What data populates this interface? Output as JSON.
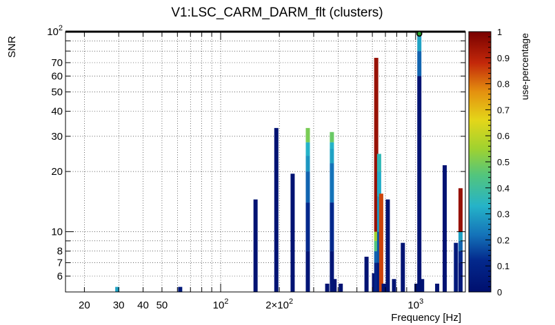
{
  "chart_data": {
    "type": "bar",
    "title": "V1:LSC_CARM_DARM_flt (clusters)",
    "xlabel": "Frequency [Hz]",
    "ylabel": "SNR",
    "colorbar_label": "use-percentage",
    "x_scale": "log",
    "y_scale": "log",
    "xlim": [
      16,
      1800
    ],
    "ylim": [
      5,
      100
    ],
    "colorbar_range": [
      0,
      1
    ],
    "grid": true,
    "x_ticks": [
      {
        "value": 20,
        "label": "20"
      },
      {
        "value": 30,
        "label": "30"
      },
      {
        "value": 40,
        "label": "40"
      },
      {
        "value": 50,
        "label": "50"
      },
      {
        "value": 100,
        "label": "10^2"
      },
      {
        "value": 200,
        "label": "2×10^2"
      },
      {
        "value": 1000,
        "label": "10^3"
      }
    ],
    "y_ticks": [
      {
        "value": 6,
        "label": "6"
      },
      {
        "value": 7,
        "label": "7"
      },
      {
        "value": 8,
        "label": "8"
      },
      {
        "value": 10,
        "label": "10"
      },
      {
        "value": 20,
        "label": "20"
      },
      {
        "value": 30,
        "label": "30"
      },
      {
        "value": 40,
        "label": "40"
      },
      {
        "value": 50,
        "label": "50"
      },
      {
        "value": 60,
        "label": "60"
      },
      {
        "value": 70,
        "label": "70"
      },
      {
        "value": 100,
        "label": "10^2"
      }
    ],
    "colorbar_ticks": [
      "0",
      "0.1",
      "0.2",
      "0.3",
      "0.4",
      "0.5",
      "0.6",
      "0.7",
      "0.8",
      "0.9",
      "1"
    ],
    "bars": [
      {
        "freq": 29.5,
        "snr": 5.3,
        "segments": [
          {
            "upto": 5.3,
            "use": 0.3
          }
        ]
      },
      {
        "freq": 62,
        "snr": 5.3,
        "segments": [
          {
            "upto": 5.3,
            "use": 0.05
          }
        ]
      },
      {
        "freq": 151,
        "snr": 14.5,
        "segments": [
          {
            "upto": 14.5,
            "use": 0.02
          }
        ]
      },
      {
        "freq": 193,
        "snr": 33,
        "segments": [
          {
            "upto": 33,
            "use": 0.02
          }
        ]
      },
      {
        "freq": 234,
        "snr": 19.5,
        "segments": [
          {
            "upto": 19.5,
            "use": 0.02
          }
        ]
      },
      {
        "freq": 280,
        "snr": 33,
        "segments": [
          {
            "upto": 8,
            "use": 0.03
          },
          {
            "upto": 14,
            "use": 0.12
          },
          {
            "upto": 20,
            "use": 0.2
          },
          {
            "upto": 24,
            "use": 0.28
          },
          {
            "upto": 28,
            "use": 0.33
          },
          {
            "upto": 33,
            "use": 0.5
          }
        ]
      },
      {
        "freq": 352,
        "snr": 5.5,
        "segments": [
          {
            "upto": 5.5,
            "use": 0.02
          }
        ]
      },
      {
        "freq": 372,
        "snr": 31.5,
        "segments": [
          {
            "upto": 8,
            "use": 0.03
          },
          {
            "upto": 14,
            "use": 0.12
          },
          {
            "upto": 22,
            "use": 0.22
          },
          {
            "upto": 26,
            "use": 0.3
          },
          {
            "upto": 28,
            "use": 0.33
          },
          {
            "upto": 31.5,
            "use": 0.48
          }
        ]
      },
      {
        "freq": 384,
        "snr": 5.8,
        "segments": [
          {
            "upto": 5.8,
            "use": 0.02
          }
        ]
      },
      {
        "freq": 413,
        "snr": 5.5,
        "segments": [
          {
            "upto": 5.5,
            "use": 0.02
          }
        ]
      },
      {
        "freq": 560,
        "snr": 7.5,
        "segments": [
          {
            "upto": 7.5,
            "use": 0.02
          }
        ]
      },
      {
        "freq": 612,
        "snr": 6.2,
        "segments": [
          {
            "upto": 6.2,
            "use": 0.02
          }
        ]
      },
      {
        "freq": 628,
        "snr": 74,
        "segments": [
          {
            "upto": 7,
            "use": 0.1
          },
          {
            "upto": 8,
            "use": 0.2
          },
          {
            "upto": 9,
            "use": 0.45
          },
          {
            "upto": 10,
            "use": 0.55
          },
          {
            "upto": 74,
            "use": 0.95
          }
        ]
      },
      {
        "freq": 650,
        "snr": 24.5,
        "segments": [
          {
            "upto": 7,
            "use": 0.05
          },
          {
            "upto": 10,
            "use": 0.18
          },
          {
            "upto": 15,
            "use": 0.28
          },
          {
            "upto": 20,
            "use": 0.32
          },
          {
            "upto": 24.5,
            "use": 0.36
          }
        ]
      },
      {
        "freq": 666,
        "snr": 15.5,
        "segments": [
          {
            "upto": 15.5,
            "use": 0.85
          }
        ]
      },
      {
        "freq": 686,
        "snr": 5.5,
        "segments": [
          {
            "upto": 5.5,
            "use": 0.02
          }
        ]
      },
      {
        "freq": 720,
        "snr": 14.5,
        "segments": [
          {
            "upto": 14.5,
            "use": 0.02
          }
        ]
      },
      {
        "freq": 775,
        "snr": 5.8,
        "segments": [
          {
            "upto": 5.8,
            "use": 0.02
          }
        ]
      },
      {
        "freq": 860,
        "snr": 8.8,
        "segments": [
          {
            "upto": 8.8,
            "use": 0.02
          }
        ]
      },
      {
        "freq": 1010,
        "snr": 5.5,
        "segments": [
          {
            "upto": 5.5,
            "use": 0.02
          }
        ]
      },
      {
        "freq": 1045,
        "snr": 98,
        "segments": [
          {
            "upto": 60,
            "use": 0.02
          },
          {
            "upto": 80,
            "use": 0.2
          },
          {
            "upto": 98,
            "use": 0.3
          }
        ]
      },
      {
        "freq": 1080,
        "snr": 5.8,
        "segments": [
          {
            "upto": 5.8,
            "use": 0.02
          }
        ]
      },
      {
        "freq": 1290,
        "snr": 5.5,
        "segments": [
          {
            "upto": 5.5,
            "use": 0.02
          }
        ]
      },
      {
        "freq": 1410,
        "snr": 21.5,
        "segments": [
          {
            "upto": 21.5,
            "use": 0.02
          }
        ]
      },
      {
        "freq": 1610,
        "snr": 8.8,
        "segments": [
          {
            "upto": 8.8,
            "use": 0.05
          }
        ]
      },
      {
        "freq": 1700,
        "snr": 16.5,
        "segments": [
          {
            "upto": 7,
            "use": 0.05
          },
          {
            "upto": 8,
            "use": 0.12
          },
          {
            "upto": 9,
            "use": 0.2
          },
          {
            "upto": 10,
            "use": 0.3
          },
          {
            "upto": 16.5,
            "use": 0.95
          }
        ]
      }
    ],
    "max_marker": {
      "freq": 1045,
      "snr": 100
    }
  }
}
